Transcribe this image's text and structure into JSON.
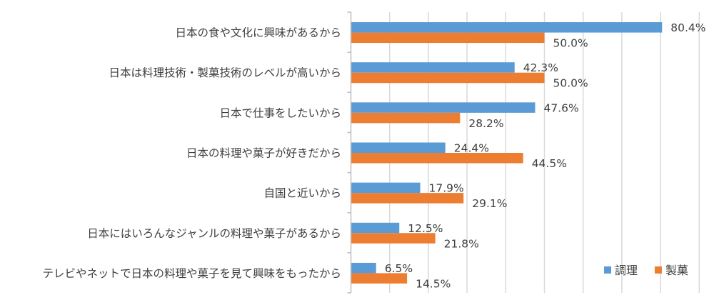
{
  "chart_data": {
    "type": "bar",
    "orientation": "horizontal",
    "categories": [
      "日本の食や文化に興味があるから",
      "日本は料理技術・製菓技術のレベルが高いから",
      "日本で仕事をしたいから",
      "日本の料理や菓子が好きだから",
      "自国と近いから",
      "日本にはいろんなジャンルの料理や菓子があるから",
      "テレビやネットで日本の料理や菓子を見て興味をもったから"
    ],
    "series": [
      {
        "name": "調理",
        "color": "#5B9BD5",
        "values": [
          80.4,
          42.3,
          47.6,
          24.4,
          17.9,
          12.5,
          6.5
        ],
        "labels": [
          "80.4%",
          "42.3%",
          "47.6%",
          "24.4%",
          "17.9%",
          "12.5%",
          "6.5%"
        ]
      },
      {
        "name": "製菓",
        "color": "#ED7D31",
        "values": [
          50.0,
          50.0,
          28.2,
          44.5,
          29.1,
          21.8,
          14.5
        ],
        "labels": [
          "50.0%",
          "50.0%",
          "28.2%",
          "44.5%",
          "29.1%",
          "21.8%",
          "14.5%"
        ]
      }
    ],
    "xlim": [
      0,
      90
    ],
    "grid": true,
    "legend": "bottom-right",
    "title": "",
    "xlabel": "",
    "ylabel": ""
  }
}
